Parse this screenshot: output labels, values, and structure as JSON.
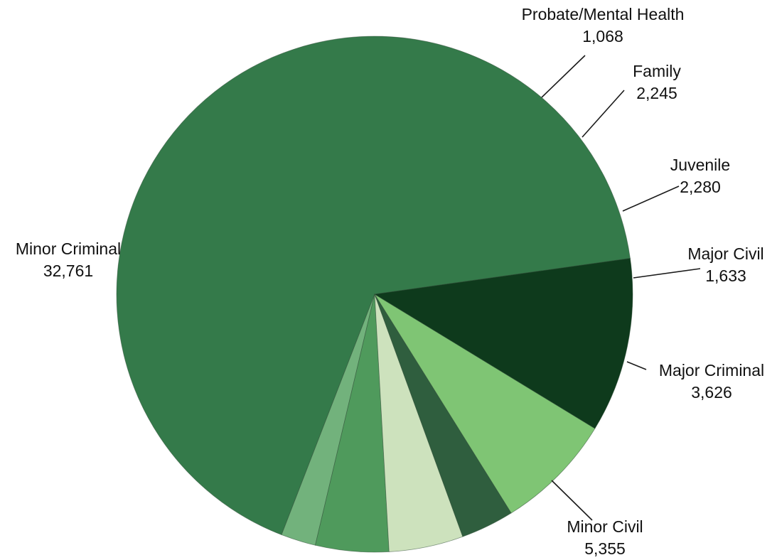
{
  "chart_data": {
    "type": "pie",
    "title": "",
    "slices": [
      {
        "label": "Minor Criminal",
        "value": 32761,
        "value_label": "32,761",
        "color": "#347a4a"
      },
      {
        "label": "Probate/Mental Health",
        "value": 1068,
        "value_label": "1,068",
        "color": "#72b27c"
      },
      {
        "label": "Family",
        "value": 2245,
        "value_label": "2,245",
        "color": "#4f9a5c"
      },
      {
        "label": "Juvenile",
        "value": 2280,
        "value_label": "2,280",
        "color": "#cde2bd"
      },
      {
        "label": "Major Civil",
        "value": 1633,
        "value_label": "1,633",
        "color": "#2f5e3e"
      },
      {
        "label": "Major Criminal",
        "value": 3626,
        "value_label": "3,626",
        "color": "#7fc574"
      },
      {
        "label": "Minor Civil",
        "value": 5355,
        "value_label": "5,355",
        "color": "#0e3a1c"
      }
    ]
  }
}
